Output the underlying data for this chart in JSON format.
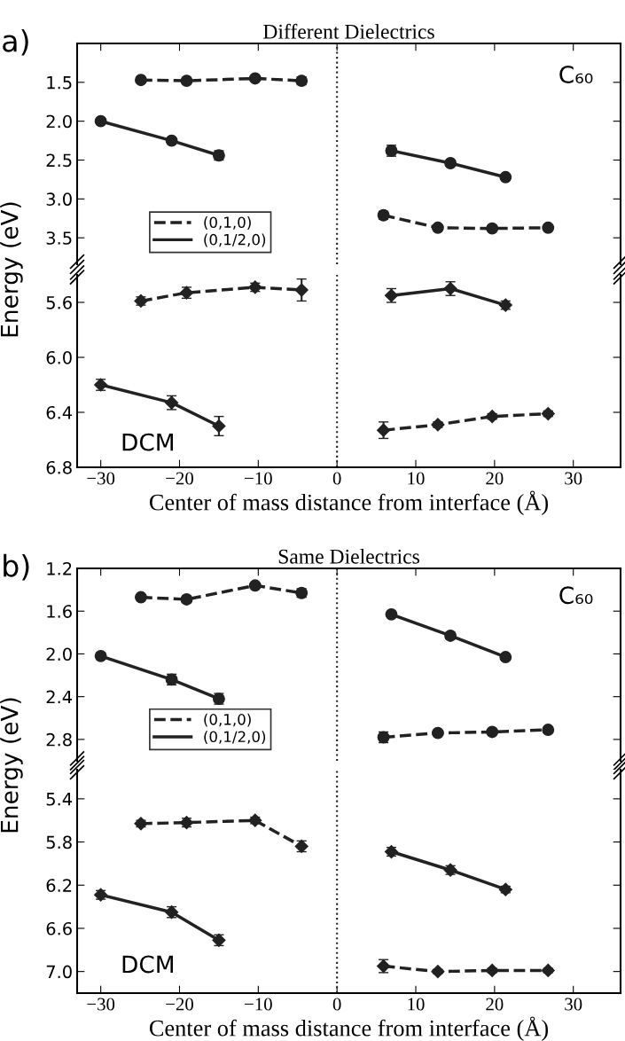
{
  "chart_data": [
    {
      "type": "line",
      "title": "Different Dielectrics",
      "annotations": [
        "a)",
        "C₆₀"
      ],
      "xlim": [
        -33,
        36
      ],
      "ylim": [
        3.84,
        1.0
      ],
      "yticks": [
        {
          "value": 1.5,
          "label": "1.5"
        },
        {
          "value": 2.0,
          "label": "2.0"
        },
        {
          "value": 2.5,
          "label": "2.5"
        },
        {
          "value": 3.0,
          "label": "3.0"
        },
        {
          "value": 3.5,
          "label": "3.5"
        }
      ],
      "xticks": [
        -30,
        -20,
        -10,
        0,
        10,
        20,
        30
      ],
      "tick_labels": "y",
      "grid": false,
      "legend": "lower left",
      "ref_lines": [
        {
          "axis": "x",
          "value": 0,
          "line_style": "dotted",
          "color": "#222222"
        }
      ],
      "series": [
        {
          "name": "(0,1,0)",
          "color": "#222222",
          "line_style": "dashed",
          "marker": "circle",
          "x": [
            -24.9,
            -19.1,
            -10.4,
            -4.5
          ],
          "values": [
            1.47,
            1.48,
            1.45,
            1.48
          ],
          "errors": [
            0.02,
            0.02,
            0.02,
            0.05
          ]
        },
        {
          "name": "(0,1/2,0)",
          "color": "#222222",
          "line_style": "solid",
          "marker": "circle",
          "x": [
            -30,
            -21,
            -15
          ],
          "values": [
            2.0,
            2.25,
            2.44
          ],
          "errors": [
            0.03,
            0.03,
            0.06
          ]
        },
        {
          "color": "#222222",
          "line_style": "solid",
          "marker": "circle",
          "x": [
            6.9,
            14.4,
            21.4
          ],
          "values": [
            2.38,
            2.54,
            2.72
          ],
          "errors": [
            0.07,
            0.03,
            0.03
          ]
        },
        {
          "color": "#222222",
          "line_style": "dashed",
          "marker": "circle",
          "x": [
            5.9,
            12.8,
            19.7,
            26.8
          ],
          "values": [
            3.21,
            3.37,
            3.38,
            3.37
          ],
          "errors": [
            0.05,
            0.03,
            0.03,
            0.03
          ]
        }
      ]
    },
    {
      "type": "line",
      "xlabel": "Center of mass distance from interface (Å)",
      "ylabel": "Energy (eV)",
      "annotations": [
        "DCM"
      ],
      "xlim": [
        -33,
        36
      ],
      "ylim": [
        6.8,
        5.4
      ],
      "yticks": [
        {
          "value": 5.6,
          "label": "5.6"
        },
        {
          "value": 6.0,
          "label": "6.0"
        },
        {
          "value": 6.4,
          "label": "6.4"
        },
        {
          "value": 6.8,
          "label": "6.8"
        }
      ],
      "xticks": [
        {
          "value": -30,
          "label": "−30"
        },
        {
          "value": -20,
          "label": "−20"
        },
        {
          "value": -10,
          "label": "−10"
        },
        0,
        10,
        20,
        30
      ],
      "grid": false,
      "ref_lines": [
        {
          "axis": "x",
          "value": 0,
          "line_style": "dotted",
          "color": "#222222"
        }
      ],
      "series": [
        {
          "color": "#222222",
          "line_style": "dashed",
          "marker": "diamond",
          "x": [
            -24.9,
            -19.1,
            -10.4,
            -4.5
          ],
          "values": [
            5.59,
            5.53,
            5.49,
            5.51
          ],
          "errors": [
            0.03,
            0.04,
            0.03,
            0.08
          ]
        },
        {
          "color": "#222222",
          "line_style": "solid",
          "marker": "diamond",
          "x": [
            -30,
            -21,
            -15
          ],
          "values": [
            6.2,
            6.33,
            6.5
          ],
          "errors": [
            0.04,
            0.05,
            0.07
          ]
        },
        {
          "color": "#222222",
          "line_style": "solid",
          "marker": "diamond",
          "x": [
            6.9,
            14.4,
            21.4
          ],
          "values": [
            5.55,
            5.5,
            5.62
          ],
          "errors": [
            0.05,
            0.05,
            0.03
          ]
        },
        {
          "color": "#222222",
          "line_style": "dashed",
          "marker": "diamond",
          "x": [
            5.9,
            12.8,
            19.7,
            26.8
          ],
          "values": [
            6.53,
            6.49,
            6.43,
            6.41
          ],
          "errors": [
            0.06,
            0.02,
            0.02,
            0.02
          ]
        }
      ]
    },
    {
      "type": "line",
      "title": "Same Dielectrics",
      "annotations": [
        "b)",
        "C₆₀"
      ],
      "xlim": [
        -33,
        36
      ],
      "ylim": [
        3.0,
        1.2
      ],
      "yticks": [
        1.2,
        1.6,
        {
          "value": 2.0,
          "label": "2.0"
        },
        2.4,
        2.8
      ],
      "xticks": [
        -30,
        -20,
        -10,
        0,
        10,
        20,
        30
      ],
      "tick_labels": "y",
      "grid": false,
      "legend": "lower left",
      "ref_lines": [
        {
          "axis": "x",
          "value": 0,
          "line_style": "dotted",
          "color": "#222222"
        }
      ],
      "series": [
        {
          "name": "(0,1,0)",
          "color": "#222222",
          "line_style": "dashed",
          "marker": "circle",
          "x": [
            -24.9,
            -19.1,
            -10.4,
            -4.5
          ],
          "values": [
            1.47,
            1.49,
            1.36,
            1.43
          ],
          "errors": [
            0.02,
            0.03,
            0.02,
            0.04
          ]
        },
        {
          "name": "(0,1/2,0)",
          "color": "#222222",
          "line_style": "solid",
          "marker": "circle",
          "x": [
            -30,
            -21,
            -15
          ],
          "values": [
            2.02,
            2.24,
            2.42
          ],
          "errors": [
            0.03,
            0.05,
            0.05
          ]
        },
        {
          "color": "#222222",
          "line_style": "solid",
          "marker": "circle",
          "x": [
            6.9,
            14.4,
            21.4
          ],
          "values": [
            1.63,
            1.83,
            2.03
          ],
          "errors": [
            0.02,
            0.03,
            0.02
          ]
        },
        {
          "color": "#222222",
          "line_style": "dashed",
          "marker": "circle",
          "x": [
            5.9,
            12.8,
            19.7,
            26.8
          ],
          "values": [
            2.78,
            2.74,
            2.73,
            2.71
          ],
          "errors": [
            0.05,
            0.02,
            0.02,
            0.02
          ]
        }
      ]
    },
    {
      "type": "line",
      "xlabel": "Center of mass distance from interface (Å)",
      "ylabel": "Energy (eV)",
      "annotations": [
        "DCM"
      ],
      "xlim": [
        -33,
        36
      ],
      "ylim": [
        7.2,
        5.13
      ],
      "yticks": [
        5.4,
        5.8,
        6.2,
        6.6,
        {
          "value": 7.0,
          "label": "7.0"
        }
      ],
      "xticks": [
        {
          "value": -30,
          "label": "−30"
        },
        {
          "value": -20,
          "label": "−20"
        },
        {
          "value": -10,
          "label": "−10"
        },
        0,
        10,
        20,
        30
      ],
      "grid": false,
      "ref_lines": [
        {
          "axis": "x",
          "value": 0,
          "line_style": "dotted",
          "color": "#222222"
        }
      ],
      "series": [
        {
          "color": "#222222",
          "line_style": "dashed",
          "marker": "diamond",
          "x": [
            -24.9,
            -19.1,
            -10.4,
            -4.5
          ],
          "values": [
            5.63,
            5.62,
            5.6,
            5.84
          ],
          "errors": [
            0.03,
            0.04,
            0.03,
            0.05
          ]
        },
        {
          "color": "#222222",
          "line_style": "solid",
          "marker": "diamond",
          "x": [
            -30,
            -21,
            -15
          ],
          "values": [
            6.29,
            6.45,
            6.71
          ],
          "errors": [
            0.04,
            0.05,
            0.05
          ]
        },
        {
          "color": "#222222",
          "line_style": "solid",
          "marker": "diamond",
          "x": [
            6.9,
            14.4,
            21.4
          ],
          "values": [
            5.89,
            6.06,
            6.24
          ],
          "errors": [
            0.04,
            0.04,
            0.03
          ]
        },
        {
          "color": "#222222",
          "line_style": "dashed",
          "marker": "diamond",
          "x": [
            5.9,
            12.8,
            19.7,
            26.8
          ],
          "values": [
            6.95,
            7.0,
            6.99,
            6.99
          ],
          "errors": [
            0.06,
            0.02,
            0.02,
            0.02
          ]
        }
      ]
    }
  ]
}
